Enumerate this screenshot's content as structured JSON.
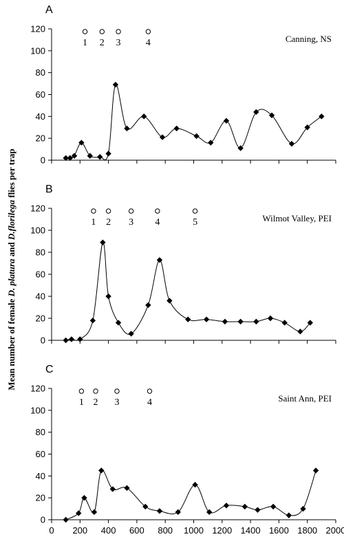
{
  "chart_data": [
    {
      "type": "line",
      "panel": "A",
      "site": "Canning, NS",
      "ylim": [
        0,
        120
      ],
      "yticks": [
        0,
        20,
        40,
        60,
        80,
        100,
        120
      ],
      "xlim": [
        0,
        2000
      ],
      "xticks": [
        0,
        200,
        400,
        600,
        800,
        1000,
        1200,
        1400,
        1600,
        1800,
        2000
      ],
      "show_xtick_labels": false,
      "grid": false,
      "events": [
        {
          "label": "1",
          "x": 235
        },
        {
          "label": "2",
          "x": 355
        },
        {
          "label": "3",
          "x": 470
        },
        {
          "label": "4",
          "x": 680
        }
      ],
      "series": [
        {
          "x": [
            100,
            130,
            160,
            210,
            270,
            340,
            400,
            450,
            530,
            650,
            780,
            880,
            1020,
            1120,
            1230,
            1330,
            1440,
            1550,
            1690,
            1800,
            1900
          ],
          "y": [
            2,
            2,
            4,
            16,
            4,
            3,
            6,
            69,
            29,
            40,
            21,
            29,
            22,
            16,
            36,
            11,
            44,
            41,
            15,
            30,
            40
          ]
        }
      ]
    },
    {
      "type": "line",
      "panel": "B",
      "site": "Wilmot Valley, PEI",
      "ylim": [
        0,
        120
      ],
      "yticks": [
        0,
        20,
        40,
        60,
        80,
        100,
        120
      ],
      "xlim": [
        0,
        2000
      ],
      "xticks": [
        0,
        200,
        400,
        600,
        800,
        1000,
        1200,
        1400,
        1600,
        1800,
        2000
      ],
      "show_xtick_labels": false,
      "grid": false,
      "events": [
        {
          "label": "1",
          "x": 295
        },
        {
          "label": "2",
          "x": 400
        },
        {
          "label": "3",
          "x": 560
        },
        {
          "label": "4",
          "x": 745
        },
        {
          "label": "5",
          "x": 1010
        }
      ],
      "series": [
        {
          "x": [
            100,
            140,
            200,
            290,
            360,
            400,
            470,
            560,
            680,
            760,
            830,
            960,
            1090,
            1220,
            1330,
            1440,
            1540,
            1640,
            1750,
            1820
          ],
          "y": [
            0,
            1,
            1,
            18,
            89,
            40,
            16,
            6,
            32,
            73,
            36,
            19,
            19,
            17,
            17,
            17,
            20,
            16,
            8,
            16
          ]
        }
      ]
    },
    {
      "type": "line",
      "panel": "C",
      "site": "Saint Ann, PEI",
      "ylim": [
        0,
        120
      ],
      "yticks": [
        0,
        20,
        40,
        60,
        80,
        100,
        120
      ],
      "xlim": [
        0,
        2000
      ],
      "xticks": [
        0,
        200,
        400,
        600,
        800,
        1000,
        1200,
        1400,
        1600,
        1800,
        2000
      ],
      "show_xtick_labels": true,
      "grid": false,
      "events": [
        {
          "label": "1",
          "x": 210
        },
        {
          "label": "2",
          "x": 310
        },
        {
          "label": "3",
          "x": 460
        },
        {
          "label": "4",
          "x": 690
        }
      ],
      "series": [
        {
          "x": [
            100,
            190,
            230,
            300,
            350,
            430,
            530,
            660,
            760,
            890,
            1010,
            1110,
            1230,
            1360,
            1450,
            1560,
            1670,
            1770,
            1860
          ],
          "y": [
            0,
            6,
            20,
            7,
            45,
            28,
            29,
            12,
            8,
            7,
            32,
            7,
            13,
            12,
            9,
            12,
            4,
            10,
            45
          ]
        }
      ]
    }
  ],
  "ylabel_parts": {
    "p1": "Mean number of female ",
    "p2": "D. platura",
    "p3": " and ",
    "p4": "D.florilega",
    "p5": " flies per trap"
  },
  "colors": {
    "line": "#000000",
    "marker": "#000000",
    "axis": "#000000"
  }
}
